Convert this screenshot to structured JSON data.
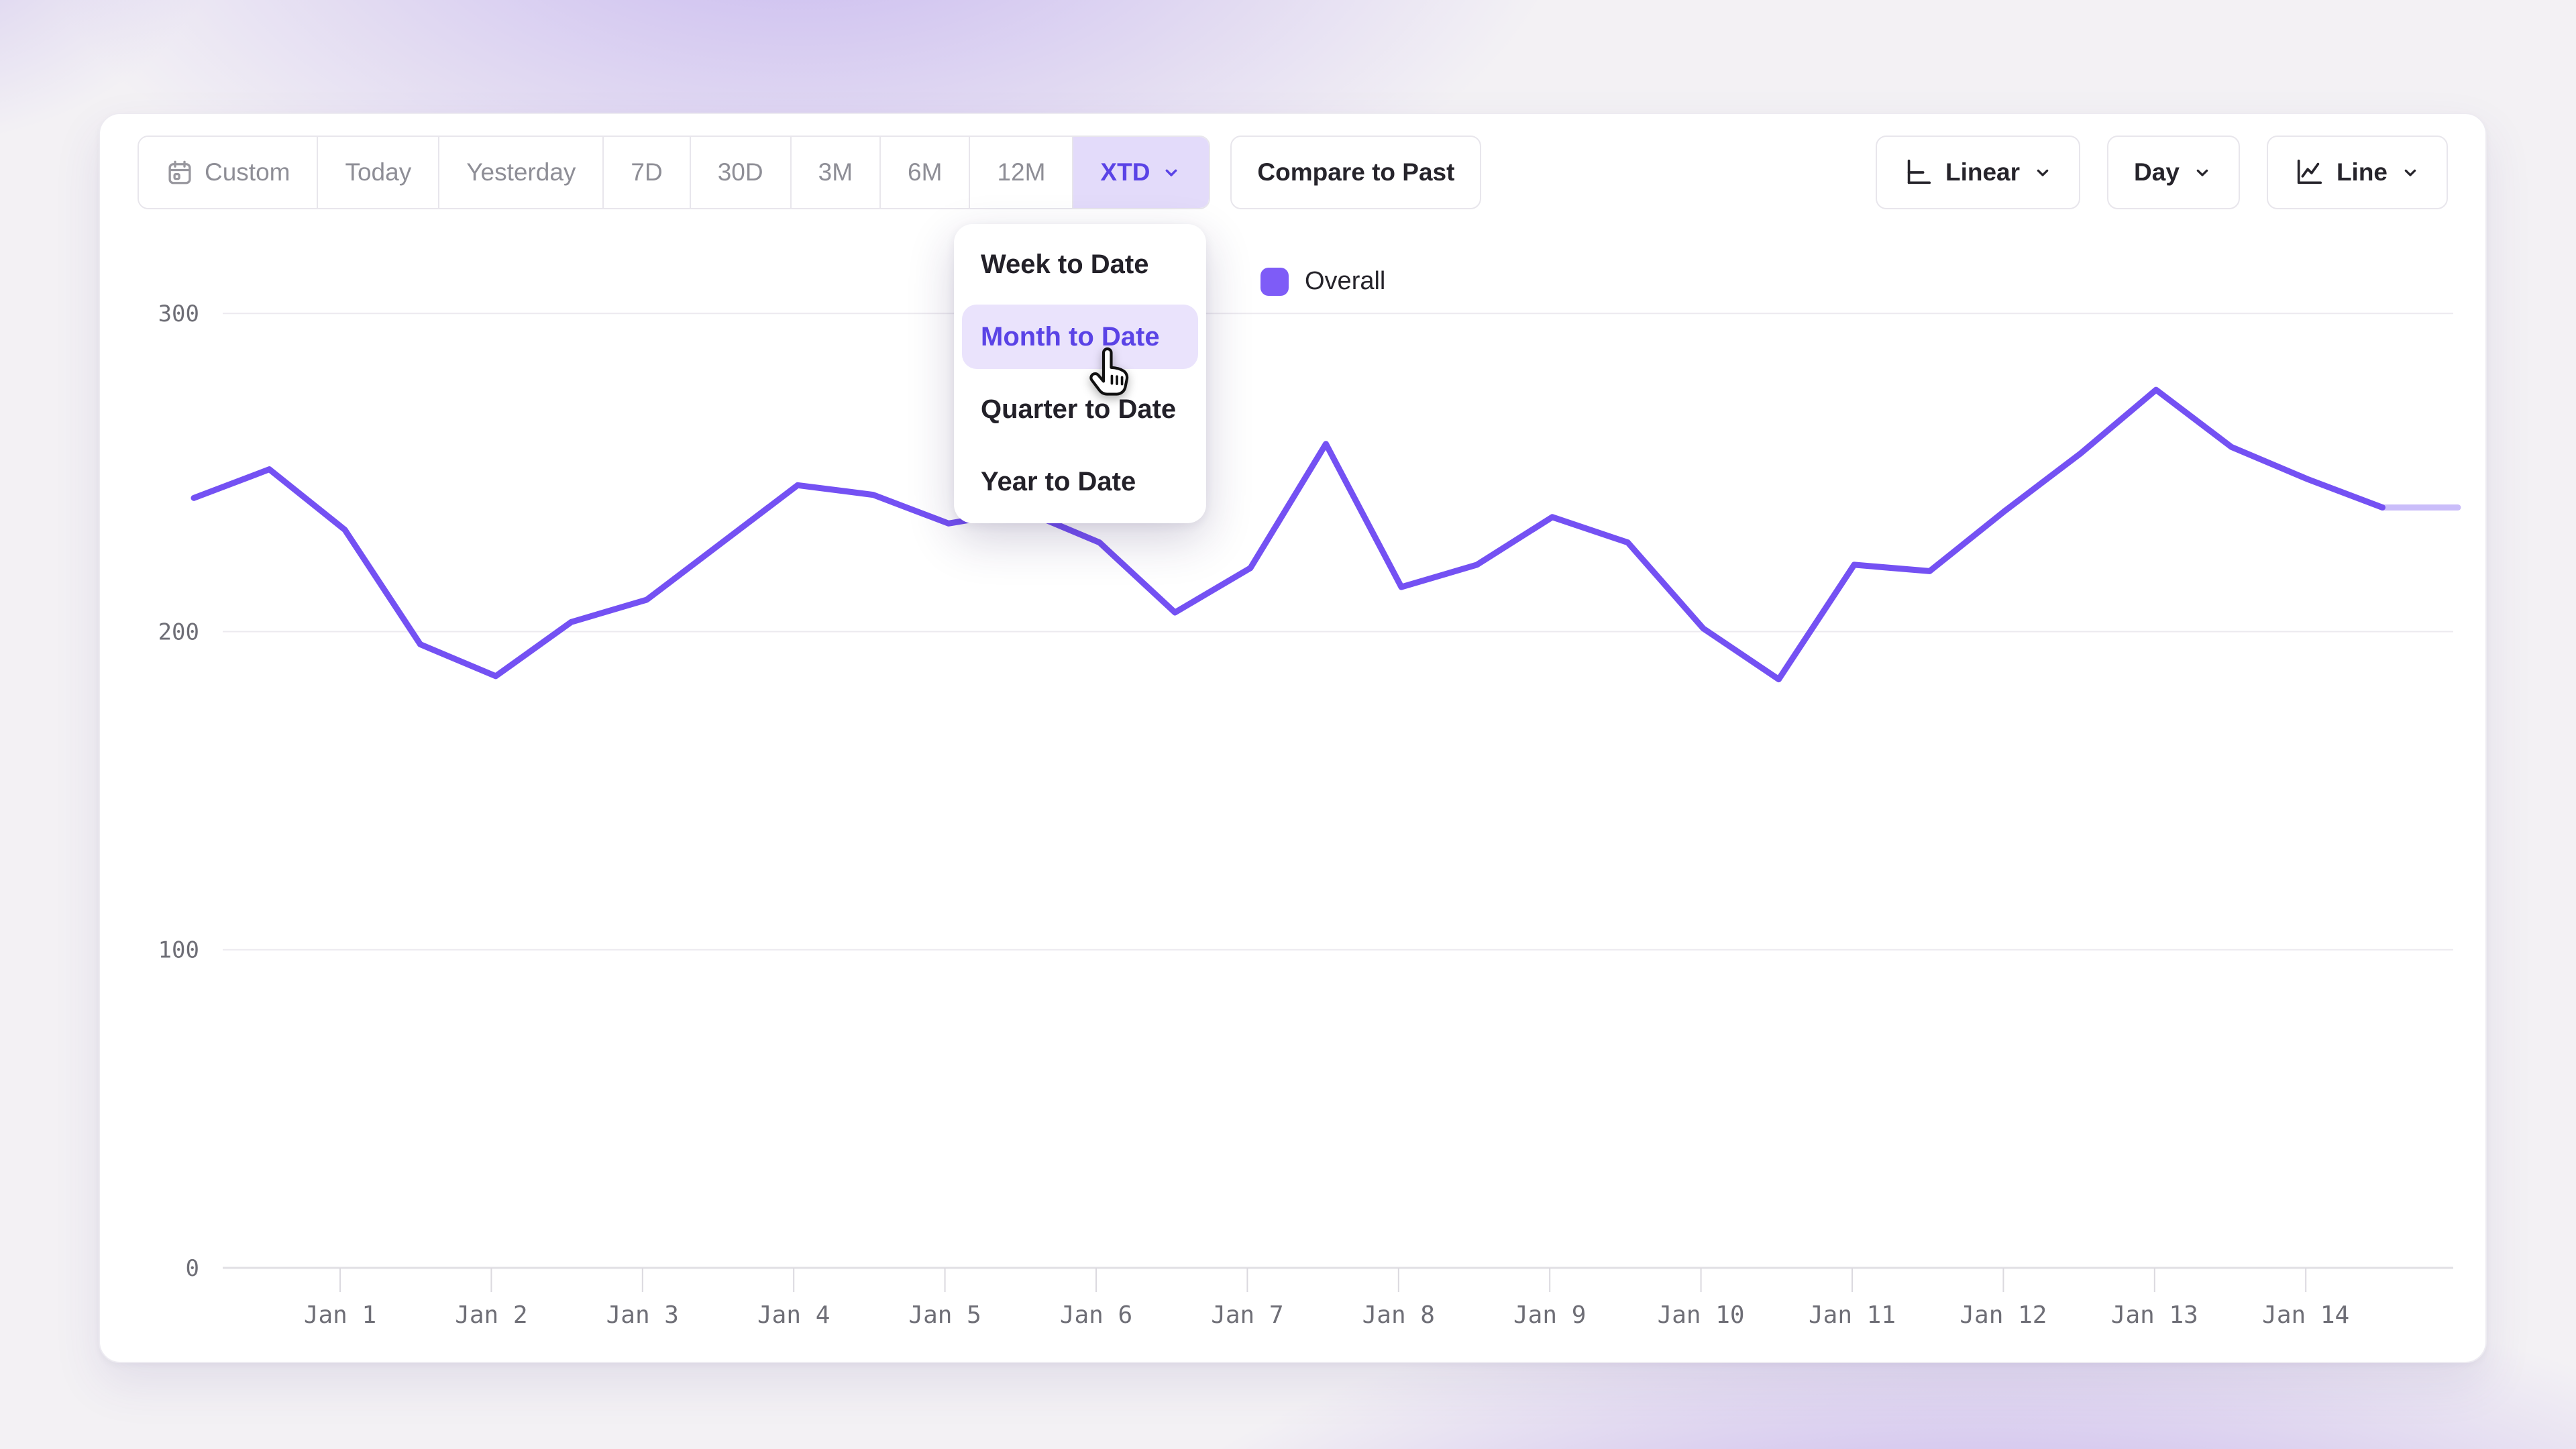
{
  "toolbar": {
    "date_ranges": [
      {
        "label": "Custom",
        "icon": "calendar-icon",
        "selected": false
      },
      {
        "label": "Today",
        "selected": false
      },
      {
        "label": "Yesterday",
        "selected": false
      },
      {
        "label": "7D",
        "selected": false
      },
      {
        "label": "30D",
        "selected": false
      },
      {
        "label": "3M",
        "selected": false
      },
      {
        "label": "6M",
        "selected": false
      },
      {
        "label": "12M",
        "selected": false
      },
      {
        "label": "XTD",
        "selected": true,
        "chevron": true
      }
    ],
    "compare_label": "Compare to Past",
    "controls": [
      {
        "label": "Linear",
        "icon": "axis-linear-icon",
        "chevron": true
      },
      {
        "label": "Day",
        "icon": null,
        "chevron": true
      },
      {
        "label": "Line",
        "icon": "line-chart-icon",
        "chevron": true
      }
    ]
  },
  "dropdown_menu": {
    "items": [
      {
        "label": "Week to Date",
        "selected": false
      },
      {
        "label": "Month to Date",
        "selected": true
      },
      {
        "label": "Quarter to Date",
        "selected": false
      },
      {
        "label": "Year to Date",
        "selected": false
      }
    ]
  },
  "legend": {
    "label": "Overall",
    "swatch_color": "#7E5CF7"
  },
  "chart_data": {
    "type": "line",
    "series": [
      {
        "name": "Overall",
        "color": "#7451F3",
        "interval_days": 0.5,
        "start_offset_days_before_jan1": 1,
        "values": [
          242,
          251,
          232,
          196,
          186,
          203,
          210,
          228,
          246,
          243,
          234,
          238,
          228,
          206,
          220,
          259,
          214,
          221,
          236,
          228,
          201,
          185,
          221,
          219,
          238,
          256,
          276,
          258,
          248,
          239,
          239
        ],
        "last_segment_faded": true
      }
    ],
    "x_tick_labels": [
      "Jan 1",
      "Jan 2",
      "Jan 3",
      "Jan 4",
      "Jan 5",
      "Jan 6",
      "Jan 7",
      "Jan 8",
      "Jan 9",
      "Jan 10",
      "Jan 11",
      "Jan 12",
      "Jan 13",
      "Jan 14"
    ],
    "y_ticks": [
      0,
      100,
      200,
      300
    ],
    "ylim": [
      0,
      316
    ],
    "grid": "horizontal",
    "legend_position": "top-center",
    "title": "",
    "xlabel": "",
    "ylabel": ""
  },
  "colors": {
    "accent": "#5A43E6",
    "accent_soft": "#E3DBFA",
    "menu_highlight": "#EAE3FC",
    "line": "#7451F3",
    "grid": "#ECEAEF",
    "baseline": "#E1DFE4",
    "axis_text": "#6E6E76",
    "muted_text": "#8E8E96",
    "dark_text": "#26242B"
  }
}
